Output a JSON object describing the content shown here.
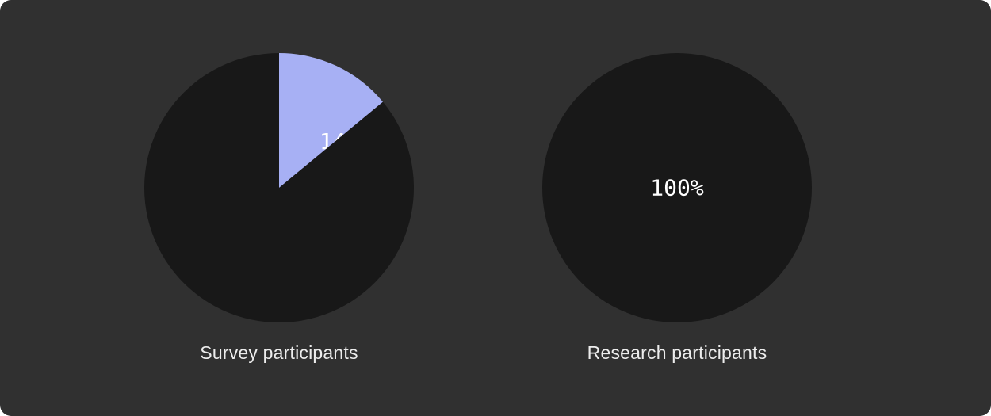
{
  "colors": {
    "background": "#303030",
    "pie_base": "#181818",
    "highlight": "#a7b0f4",
    "text": "#ffffff"
  },
  "chart_data": [
    {
      "type": "pie",
      "caption": "Survey participants",
      "slices": [
        {
          "value": 14,
          "label": "14%",
          "color": "#a7b0f4"
        },
        {
          "value": 86,
          "label": "",
          "color": "#181818"
        }
      ]
    },
    {
      "type": "pie",
      "caption": "Research participants",
      "slices": [
        {
          "value": 100,
          "label": "100%",
          "color": "#181818"
        }
      ]
    }
  ]
}
